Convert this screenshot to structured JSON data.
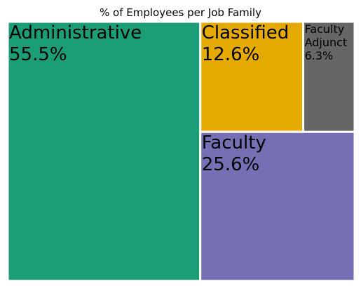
{
  "chart_data": {
    "type": "treemap",
    "title": "% of Employees per Job Family",
    "items": [
      {
        "name": "Administrative",
        "value": 55.5,
        "label": "55.5%",
        "color": "#1b9e77"
      },
      {
        "name": "Faculty",
        "value": 25.6,
        "label": "25.6%",
        "color": "#7570b3"
      },
      {
        "name": "Classified",
        "value": 12.6,
        "label": "12.6%",
        "color": "#e6ab02"
      },
      {
        "name": "Faculty Adjunct",
        "value": 6.3,
        "label": "6.3%",
        "color": "#666666"
      }
    ]
  }
}
